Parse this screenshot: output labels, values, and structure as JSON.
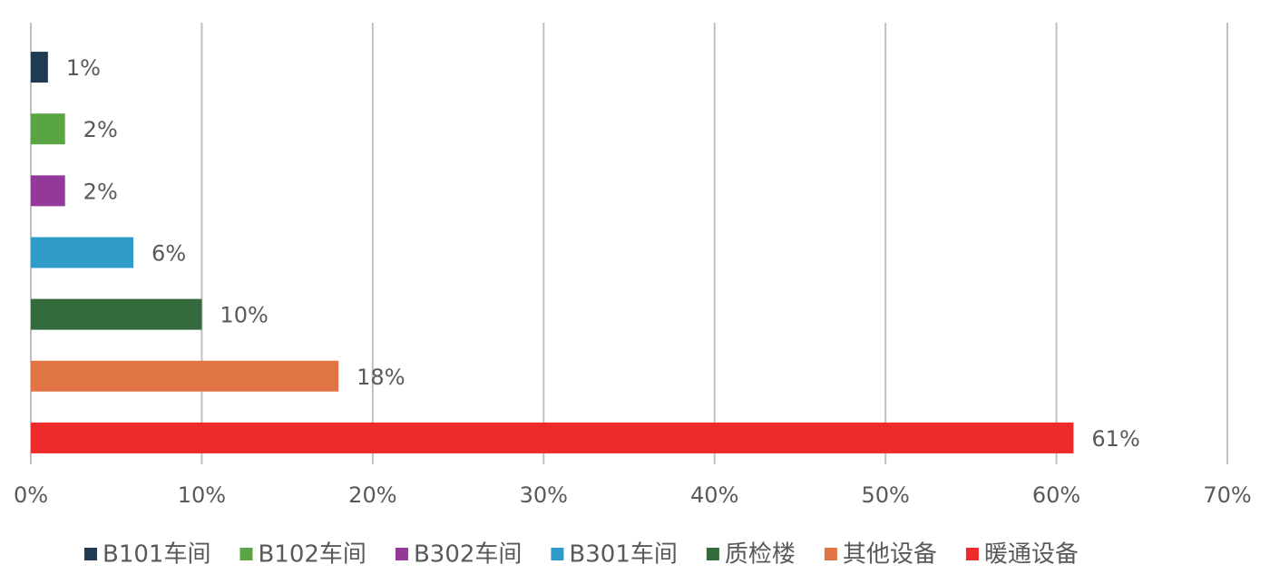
{
  "chart_data": {
    "type": "bar",
    "orientation": "horizontal",
    "series": [
      {
        "name": "B101车间",
        "color": "#1f3a52",
        "values": [
          1
        ],
        "value_labels": [
          "1%"
        ]
      },
      {
        "name": "B102车间",
        "color": "#5aa543",
        "values": [
          2
        ],
        "value_labels": [
          "2%"
        ]
      },
      {
        "name": "B302车间",
        "color": "#93399a",
        "values": [
          2
        ],
        "value_labels": [
          "2%"
        ]
      },
      {
        "name": "B301车间",
        "color": "#2e9bc9",
        "values": [
          6
        ],
        "value_labels": [
          "6%"
        ]
      },
      {
        "name": "质检楼",
        "color": "#336b3d",
        "values": [
          10
        ],
        "value_labels": [
          "10%"
        ]
      },
      {
        "name": "其他设备",
        "color": "#e07445",
        "values": [
          18
        ],
        "value_labels": [
          "18%"
        ]
      },
      {
        "name": "暖通设备",
        "color": "#ee2a2a",
        "values": [
          61
        ],
        "value_labels": [
          "61%"
        ]
      }
    ],
    "xlim": [
      0,
      70
    ],
    "xticks": [
      {
        "value": 0,
        "label": "0%"
      },
      {
        "value": 10,
        "label": "10%"
      },
      {
        "value": 20,
        "label": "20%"
      },
      {
        "value": 30,
        "label": "30%"
      },
      {
        "value": 40,
        "label": "40%"
      },
      {
        "value": 50,
        "label": "50%"
      },
      {
        "value": 60,
        "label": "60%"
      },
      {
        "value": 70,
        "label": "70%"
      }
    ],
    "grid": true,
    "legend": "bottom"
  }
}
